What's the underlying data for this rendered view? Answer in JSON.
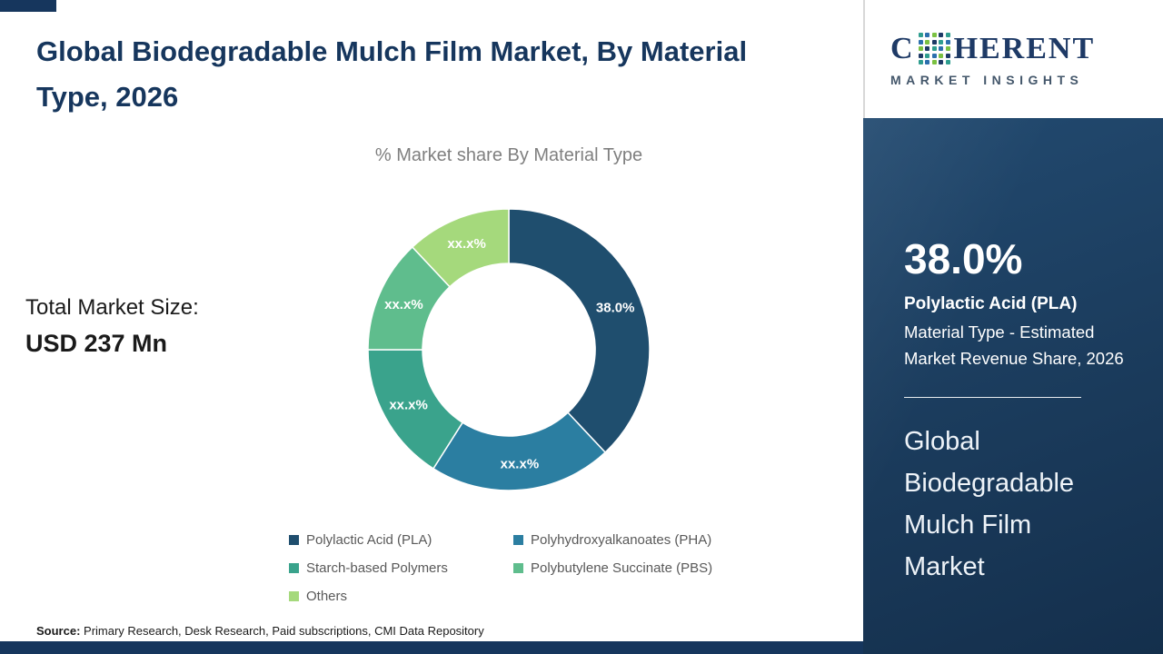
{
  "title": "Global Biodegradable Mulch Film Market, By Material Type, 2026",
  "subtitle": "% Market share By Material Type",
  "total_market": {
    "label": "Total Market Size:",
    "value": "USD 237 Mn"
  },
  "source": {
    "label": "Source:",
    "text": " Primary Research, Desk Research, Paid subscriptions, CMI Data Repository"
  },
  "logo": {
    "prefix": "C",
    "suffix": "HERENT",
    "tagline": "MARKET INSIGHTS",
    "dot_colors": [
      "#2f9e8f",
      "#2c6fad",
      "#7bc142",
      "#1e3a66"
    ]
  },
  "sidebar": {
    "stat_value": "38.0%",
    "stat_title": "Polylactic Acid (PLA)",
    "stat_desc": "Material Type - Estimated Market Revenue Share, 2026",
    "market_name": "Global Biodegradable Mulch Film Market"
  },
  "chart_data": {
    "type": "pie",
    "subtype": "donut",
    "title": "% Market share By Material Type",
    "inner_radius_ratio": 0.61,
    "start_angle_deg": 0,
    "legend_position": "bottom",
    "segments": [
      {
        "label": "Polylactic Acid (PLA)",
        "value": 38,
        "display": "38.0%",
        "color": "#1f4e6e"
      },
      {
        "label": "Polyhydroxyalkanoates (PHA)",
        "value": 21,
        "display": "xx.x%",
        "color": "#2b7ea1"
      },
      {
        "label": "Starch-based Polymers",
        "value": 16,
        "display": "xx.x%",
        "color": "#3aa38c"
      },
      {
        "label": "Polybutylene Succinate (PBS)",
        "value": 13,
        "display": "xx.x%",
        "color": "#5fbd8d"
      },
      {
        "label": "Others",
        "value": 12,
        "display": "xx.x%",
        "color": "#a5d97c"
      }
    ]
  }
}
